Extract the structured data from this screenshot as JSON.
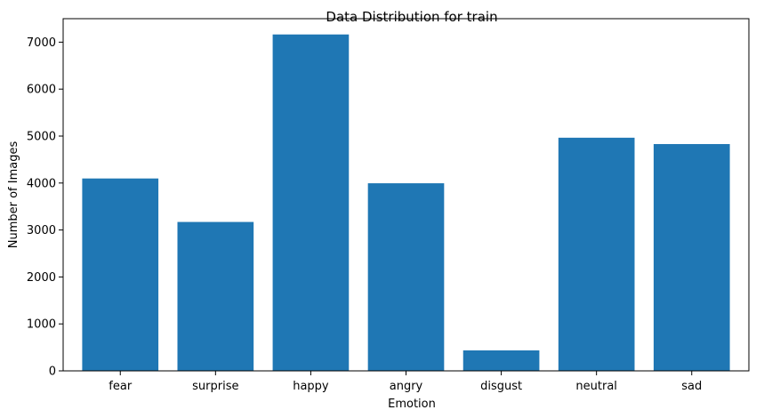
{
  "chart_data": {
    "type": "bar",
    "title": "Data Distribution for train",
    "xlabel": "Emotion",
    "ylabel": "Number of Images",
    "categories": [
      "fear",
      "surprise",
      "happy",
      "angry",
      "disgust",
      "neutral",
      "sad"
    ],
    "values": [
      4097,
      3171,
      7164,
      3995,
      436,
      4965,
      4830
    ],
    "ylim": [
      0,
      7500
    ],
    "yticks": [
      0,
      1000,
      2000,
      3000,
      4000,
      5000,
      6000,
      7000
    ],
    "ytick_labels": [
      "0",
      "1000",
      "2000",
      "3000",
      "4000",
      "5000",
      "6000",
      "7000"
    ],
    "grid": false,
    "bar_color": "#1f77b4"
  }
}
